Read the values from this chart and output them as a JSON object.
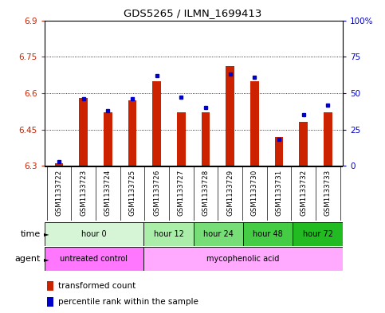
{
  "title": "GDS5265 / ILMN_1699413",
  "samples": [
    "GSM1133722",
    "GSM1133723",
    "GSM1133724",
    "GSM1133725",
    "GSM1133726",
    "GSM1133727",
    "GSM1133728",
    "GSM1133729",
    "GSM1133730",
    "GSM1133731",
    "GSM1133732",
    "GSM1133733"
  ],
  "red_values": [
    6.31,
    6.58,
    6.52,
    6.57,
    6.65,
    6.52,
    6.52,
    6.71,
    6.65,
    6.42,
    6.48,
    6.52
  ],
  "blue_values_pct": [
    3,
    46,
    38,
    46,
    62,
    47,
    40,
    63,
    61,
    18,
    35,
    42
  ],
  "ylim_left": [
    6.3,
    6.9
  ],
  "ylim_right": [
    0,
    100
  ],
  "yticks_left": [
    6.3,
    6.45,
    6.6,
    6.75,
    6.9
  ],
  "yticks_right": [
    0,
    25,
    50,
    75,
    100
  ],
  "ytick_labels_left": [
    "6.3",
    "6.45",
    "6.6",
    "6.75",
    "6.9"
  ],
  "ytick_labels_right": [
    "0",
    "25",
    "50",
    "75",
    "100%"
  ],
  "base_value": 6.3,
  "time_groups": [
    {
      "label": "hour 0",
      "span": [
        0,
        4
      ],
      "color": "#d6f5d6"
    },
    {
      "label": "hour 12",
      "span": [
        4,
        6
      ],
      "color": "#aaeeaa"
    },
    {
      "label": "hour 24",
      "span": [
        6,
        8
      ],
      "color": "#77dd77"
    },
    {
      "label": "hour 48",
      "span": [
        8,
        10
      ],
      "color": "#44cc44"
    },
    {
      "label": "hour 72",
      "span": [
        10,
        12
      ],
      "color": "#22bb22"
    }
  ],
  "agent_groups": [
    {
      "label": "untreated control",
      "span": [
        0,
        4
      ],
      "color": "#ff77ff"
    },
    {
      "label": "mycophenolic acid",
      "span": [
        4,
        12
      ],
      "color": "#ffaaff"
    }
  ],
  "legend_red": "transformed count",
  "legend_blue": "percentile rank within the sample",
  "bar_width": 0.35,
  "red_color": "#cc2200",
  "blue_color": "#0000cc",
  "bg_color": "#ffffff",
  "plot_bg": "#ffffff",
  "tick_color_left": "#cc2200",
  "tick_color_right": "#0000cc",
  "grid_color": "#000000",
  "xticklabel_bg": "#cccccc"
}
